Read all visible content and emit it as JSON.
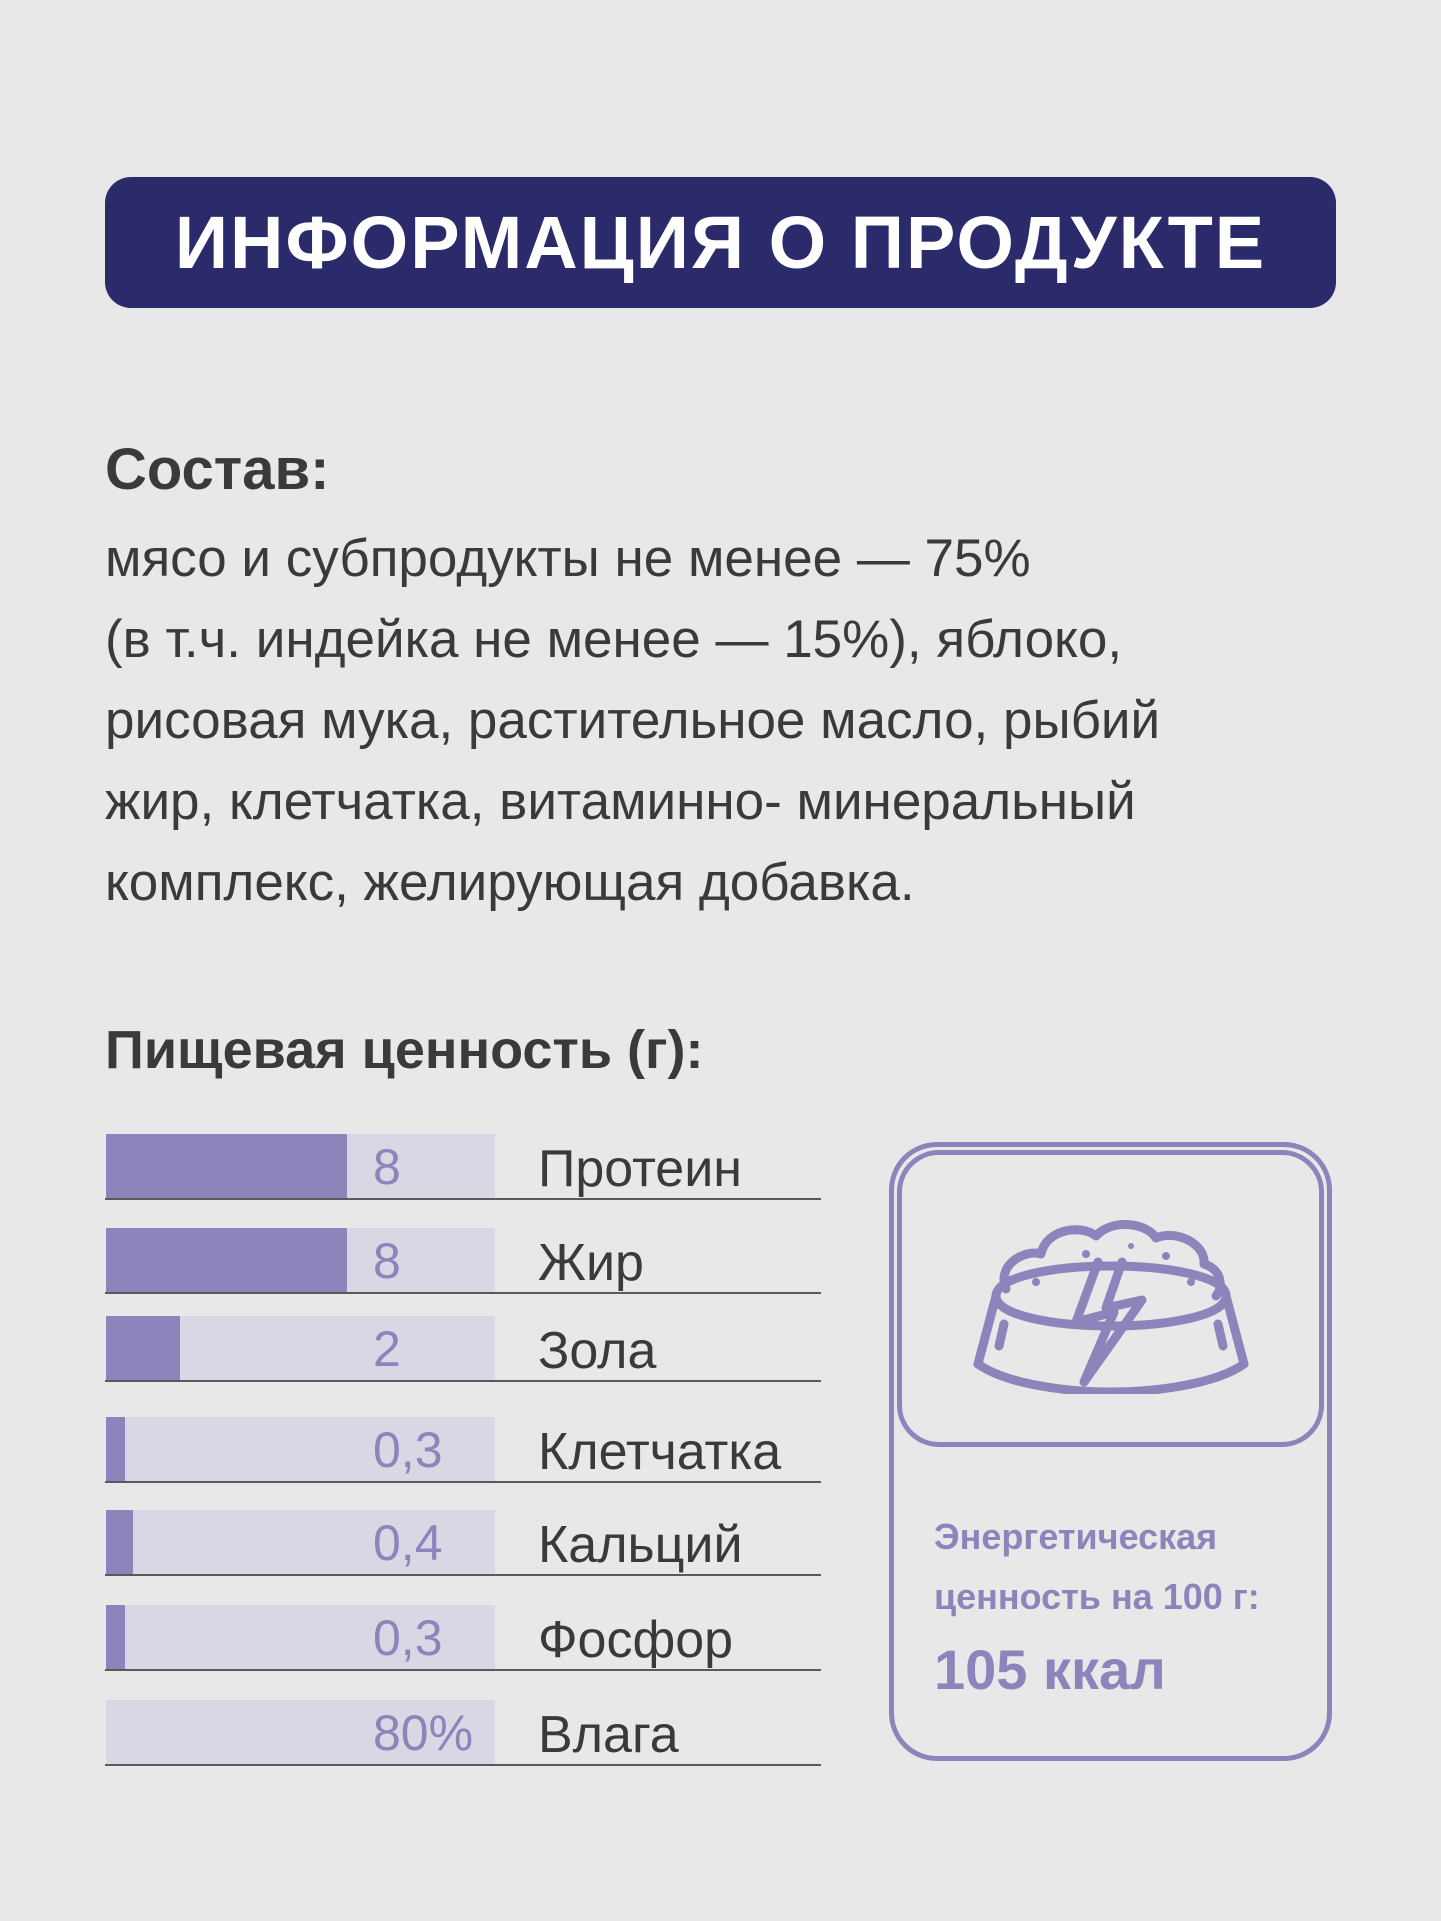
{
  "header": {
    "title": "ИНФОРМАЦИЯ О ПРОДУКТЕ"
  },
  "composition": {
    "title": "Состав:",
    "lines": [
      "мясо и субпродукты не менее — 75%",
      "(в т.ч. индейка не менее — 15%), яблоко,",
      "рисовая мука, растительное масло, рыбий",
      "жир, клетчатка, витаминно- минеральный",
      "комплекс, желирующая добавка."
    ]
  },
  "nutrition": {
    "title": "Пищевая ценность (г):",
    "items": [
      {
        "value": "8",
        "label": "Протеин",
        "fill": 0.62
      },
      {
        "value": "8",
        "label": "Жир",
        "fill": 0.62
      },
      {
        "value": "2",
        "label": "Зола",
        "fill": 0.19
      },
      {
        "value": "0,3",
        "label": "Клетчатка",
        "fill": 0.05
      },
      {
        "value": "0,4",
        "label": "Кальций",
        "fill": 0.07
      },
      {
        "value": "0,3",
        "label": "Фосфор",
        "fill": 0.05
      },
      {
        "value": "80%",
        "label": "Влага",
        "fill": 0.0
      }
    ]
  },
  "energy": {
    "icon": "food-bowl-energy-icon",
    "label_line1": "Энергетическая",
    "label_line2": "ценность на 100 г:",
    "value": "105 ккал"
  },
  "colors": {
    "banner": "#2b2a6b",
    "accent": "#8b85bb",
    "bar_track": "#d9d7e3",
    "text": "#3a3a3a",
    "background": "#e8e8e8"
  }
}
